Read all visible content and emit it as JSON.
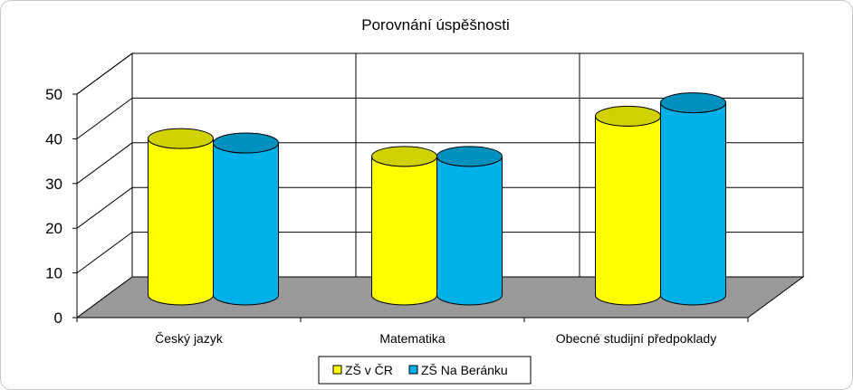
{
  "chart_data": {
    "type": "bar",
    "title": "Porovnání úspěšnosti",
    "categories": [
      "Český jazyk",
      "Matematika",
      "Obecné studijní předpoklady"
    ],
    "series": [
      {
        "name": "ZŠ v ČR",
        "values": [
          35,
          31,
          40
        ],
        "color": "#ffff00"
      },
      {
        "name": "ZŠ Na Beránku",
        "values": [
          34,
          31,
          43
        ],
        "color": "#00b0e8"
      }
    ],
    "ylim": [
      0,
      50
    ],
    "yticks": [
      "0",
      "10",
      "20",
      "30",
      "40",
      "50"
    ],
    "grid": true,
    "legend": "bottom",
    "floor_color": "#999999"
  }
}
